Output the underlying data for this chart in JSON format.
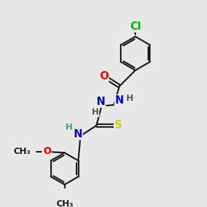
{
  "bg_color": "#e8e8e8",
  "bond_color": "#1a1a1a",
  "bond_width": 1.6,
  "atom_colors": {
    "O": "#ff0000",
    "N": "#0000cc",
    "S": "#cccc00",
    "Cl": "#00bb00",
    "H_teal": "#4a9999"
  },
  "font_size": 11,
  "small_font_size": 9,
  "figsize": [
    3.0,
    3.0
  ],
  "dpi": 100,
  "xlim": [
    0,
    10
  ],
  "ylim": [
    0,
    10
  ]
}
